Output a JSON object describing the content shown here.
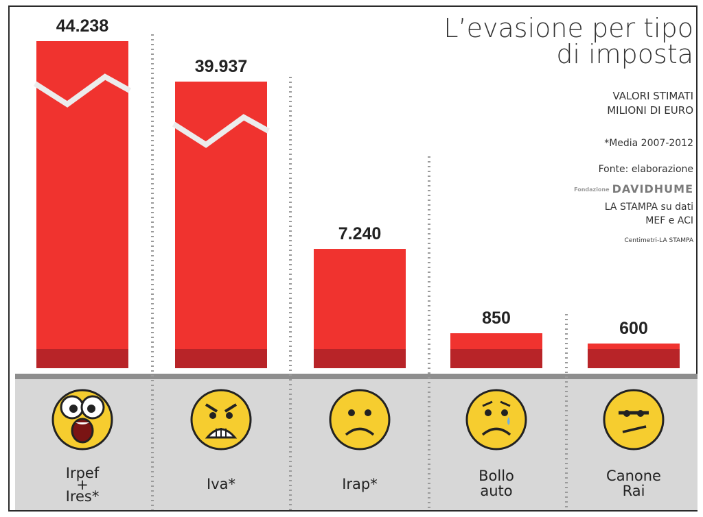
{
  "header": {
    "title_line1": "L’evasione per tipo",
    "title_line2": "di imposta",
    "units_line1": "VALORI STIMATI",
    "units_line2": "MILIONI DI EURO",
    "note": "*Media 2007-2012",
    "source_line1": "Fonte: elaborazione",
    "source_logo_small": "Fondazione",
    "source_logo": "DAVIDHUME",
    "source_line2": "LA STAMPA su dati",
    "source_line3": "MEF e ACI",
    "credit": "Centimetri-LA STAMPA"
  },
  "colors": {
    "bar": "#f0332f",
    "bar_dark": "#b82428",
    "panel": "#d7d7d7",
    "baseline": "#8e8e8e",
    "face": "#f6cd2f"
  },
  "chart_data": {
    "type": "bar",
    "title": "L’evasione per tipo di imposta",
    "ylabel": "VALORI STIMATI MILIONI DI EURO",
    "categories": [
      "Irpef + Ires*",
      "Iva*",
      "Irap*",
      "Bollo auto",
      "Canone Rai"
    ],
    "values": [
      44238,
      39937,
      7240,
      850,
      600
    ],
    "value_labels": [
      "44.238",
      "39.937",
      "7.240",
      "850",
      "600"
    ],
    "category_lines": [
      [
        "Irpef",
        "+",
        "Ires*"
      ],
      [
        "Iva*"
      ],
      [
        "Irap*"
      ],
      [
        "Bollo",
        "auto"
      ],
      [
        "Canone",
        "Rai"
      ]
    ],
    "broken_axis_bars": [
      0,
      1
    ],
    "icons": [
      "shocked-face-icon",
      "angry-face-icon",
      "sad-face-icon",
      "worried-face-icon",
      "unamused-face-icon"
    ],
    "grid": false,
    "legend": "none"
  }
}
